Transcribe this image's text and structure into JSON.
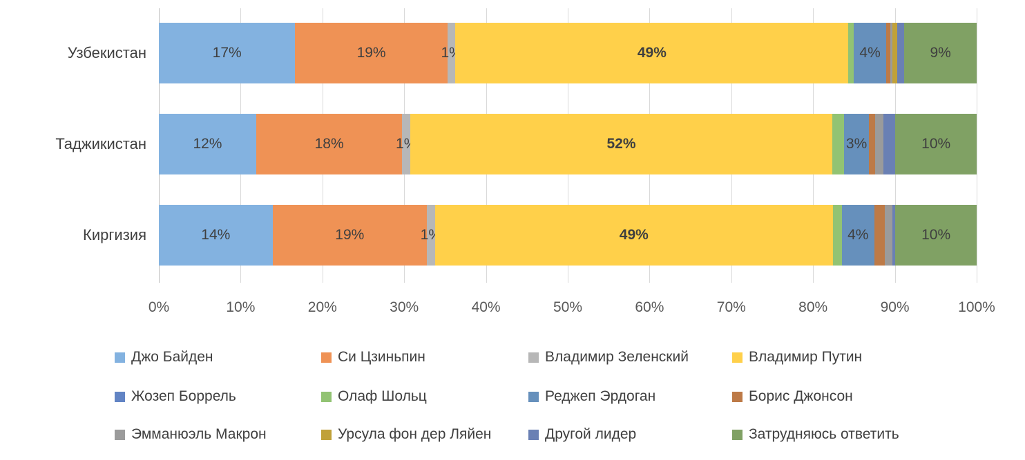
{
  "chart_data": {
    "type": "bar",
    "orientation": "horizontal",
    "stacked": true,
    "title": "",
    "grid": true,
    "legend_position": "bottom",
    "categories": [
      "Узбекистан",
      "Таджикистан",
      "Киргизия"
    ],
    "series": [
      {
        "name": "Джо Байден",
        "color": "#83B2E0",
        "values": [
          17,
          12,
          14
        ],
        "labels": [
          "17%",
          "12%",
          "14%"
        ]
      },
      {
        "name": "Си Цзиньпин",
        "color": "#EF9255",
        "values": [
          19,
          18,
          19
        ],
        "labels": [
          "19%",
          "18%",
          "19%"
        ]
      },
      {
        "name": "Владимир Зеленский",
        "color": "#B7B7B7",
        "values": [
          1,
          1,
          1
        ],
        "labels": [
          "1%",
          "1%",
          "1%"
        ]
      },
      {
        "name": "Владимир Путин",
        "color": "#FFD04A",
        "values": [
          49,
          52,
          49
        ],
        "labels": [
          "49%",
          "52%",
          "49%"
        ],
        "bold": true
      },
      {
        "name": "Жозеп Боррель",
        "color": "#6284C4",
        "values": [
          0,
          0,
          0
        ],
        "labels": [
          null,
          null,
          null
        ]
      },
      {
        "name": "Олаф Шольц",
        "color": "#92C373",
        "values": [
          0.7,
          1.5,
          1.1
        ],
        "labels": [
          null,
          null,
          null
        ]
      },
      {
        "name": "Реджеп Эрдоган",
        "color": "#6690BC",
        "values": [
          4,
          3,
          4
        ],
        "labels": [
          "4%",
          "3%",
          "4%"
        ]
      },
      {
        "name": "Борис Джонсон",
        "color": "#BD7A47",
        "values": [
          0.5,
          0.8,
          1.3
        ],
        "labels": [
          null,
          null,
          null
        ]
      },
      {
        "name": "Эмманюэль Макрон",
        "color": "#9B9B9B",
        "values": [
          0.3,
          1.0,
          0.9
        ],
        "labels": [
          null,
          null,
          null
        ]
      },
      {
        "name": "Урсула фон дер Ляйен",
        "color": "#C0A139",
        "values": [
          0.6,
          0,
          0
        ],
        "labels": [
          null,
          null,
          null
        ]
      },
      {
        "name": "Другой лидер",
        "color": "#6A80B4",
        "values": [
          0.9,
          1.5,
          0.4
        ],
        "labels": [
          null,
          null,
          null
        ]
      },
      {
        "name": "Затрудняюсь ответить",
        "color": "#80A164",
        "values": [
          9,
          10,
          10
        ],
        "labels": [
          "9%",
          "10%",
          "10%"
        ]
      }
    ],
    "x_axis": {
      "min": 0,
      "max": 100,
      "ticks": [
        "0%",
        "10%",
        "20%",
        "30%",
        "40%",
        "50%",
        "60%",
        "70%",
        "80%",
        "90%",
        "100%"
      ]
    },
    "colors": {
      "gridline": "#D9D9D9",
      "axis_line": "#BFBFBF",
      "label_text": "#3F3F3F",
      "tick_text": "#595959"
    }
  }
}
